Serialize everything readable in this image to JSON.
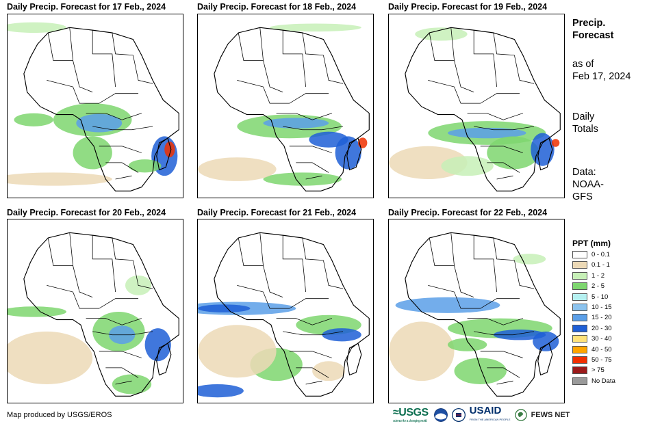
{
  "panels": [
    {
      "title": "Daily Precip. Forecast for 17 Feb., 2024"
    },
    {
      "title": "Daily Precip. Forecast for 18 Feb., 2024"
    },
    {
      "title": "Daily Precip. Forecast for 19 Feb., 2024"
    },
    {
      "title": "Daily Precip. Forecast for 20 Feb., 2024"
    },
    {
      "title": "Daily Precip. Forecast for 21 Feb., 2024"
    },
    {
      "title": "Daily Precip. Forecast for 22 Feb., 2024"
    }
  ],
  "sidebar": {
    "heading_line1": "Precip.",
    "heading_line2": "Forecast",
    "asof_line1": "as of",
    "asof_line2": "Feb 17, 2024",
    "type_line1": "Daily",
    "type_line2": "Totals",
    "source_line1": "Data:",
    "source_line2": "NOAA-",
    "source_line3": "GFS"
  },
  "legend": {
    "title": "PPT (mm)",
    "items": [
      {
        "label": "0 - 0.1",
        "color": "#ffffff"
      },
      {
        "label": "0.1 - 1",
        "color": "#ecd9b6"
      },
      {
        "label": "1 - 2",
        "color": "#c7f0b7"
      },
      {
        "label": "2 - 5",
        "color": "#7ed66f"
      },
      {
        "label": "5 - 10",
        "color": "#b5f0f0"
      },
      {
        "label": "10 - 15",
        "color": "#8cc3ee"
      },
      {
        "label": "15 - 20",
        "color": "#5b9fe8"
      },
      {
        "label": "20 - 30",
        "color": "#1f5fd6"
      },
      {
        "label": "30 - 40",
        "color": "#ffe27a"
      },
      {
        "label": "40 - 50",
        "color": "#ffa500"
      },
      {
        "label": "50 - 75",
        "color": "#f03000"
      },
      {
        "label": "> 75",
        "color": "#9b1a1a"
      },
      {
        "label": "No Data",
        "color": "#9a9a9a"
      }
    ]
  },
  "footer": {
    "credit": "Map produced by USGS/EROS",
    "usgs": "≈USGS",
    "usgs_tagline": "science for a changing world",
    "usaid": "USAID",
    "usaid_tagline": "FROM THE AMERICAN PEOPLE",
    "fews": "FEWS NET"
  }
}
